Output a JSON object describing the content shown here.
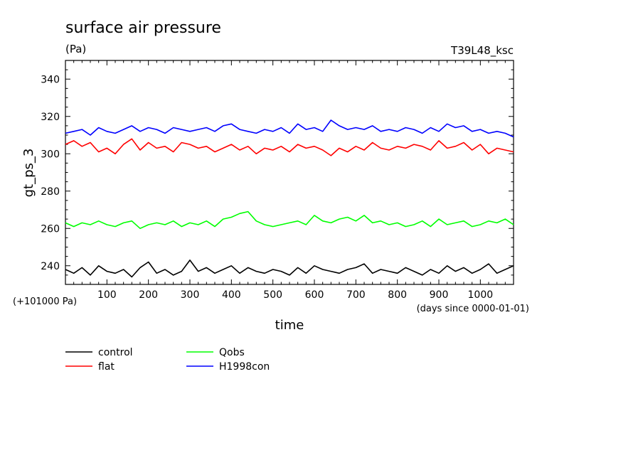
{
  "chart_data": {
    "type": "line",
    "title": "surface air pressure",
    "units": "(Pa)",
    "run_label": "T39L48_ksc",
    "xlabel": "time",
    "x_units": "(days since 0000-01-01)",
    "ylabel": "gt_ps_3",
    "y_offset_note": "(+101000 Pa)",
    "xlim": [
      0,
      1080
    ],
    "ylim": [
      230,
      350
    ],
    "x_ticks": [
      100,
      200,
      300,
      400,
      500,
      600,
      700,
      800,
      900,
      1000
    ],
    "y_ticks": [
      240,
      260,
      280,
      300,
      320,
      340
    ],
    "grid": false,
    "legend_position": "bottom-left",
    "x": [
      0,
      20,
      40,
      60,
      80,
      100,
      120,
      140,
      160,
      180,
      200,
      220,
      240,
      260,
      280,
      300,
      320,
      340,
      360,
      380,
      400,
      420,
      440,
      460,
      480,
      500,
      520,
      540,
      560,
      580,
      600,
      620,
      640,
      660,
      680,
      700,
      720,
      740,
      760,
      780,
      800,
      820,
      840,
      860,
      880,
      900,
      920,
      940,
      960,
      980,
      1000,
      1020,
      1040,
      1060,
      1080
    ],
    "series": [
      {
        "name": "control",
        "color": "#000000",
        "values": [
          238,
          236,
          239,
          235,
          240,
          237,
          236,
          238,
          234,
          239,
          242,
          236,
          238,
          235,
          237,
          243,
          237,
          239,
          236,
          238,
          240,
          236,
          239,
          237,
          236,
          238,
          237,
          235,
          239,
          236,
          240,
          238,
          237,
          236,
          238,
          239,
          241,
          236,
          238,
          237,
          236,
          239,
          237,
          235,
          238,
          236,
          240,
          237,
          239,
          236,
          238,
          241,
          236,
          238,
          240
        ]
      },
      {
        "name": "flat",
        "color": "#ff0000",
        "values": [
          305,
          307,
          304,
          306,
          301,
          303,
          300,
          305,
          308,
          302,
          306,
          303,
          304,
          301,
          306,
          305,
          303,
          304,
          301,
          303,
          305,
          302,
          304,
          300,
          303,
          302,
          304,
          301,
          305,
          303,
          304,
          302,
          299,
          303,
          301,
          304,
          302,
          306,
          303,
          302,
          304,
          303,
          305,
          304,
          302,
          307,
          303,
          304,
          306,
          302,
          305,
          300,
          303,
          302,
          301
        ]
      },
      {
        "name": "Qobs",
        "color": "#00ff00",
        "values": [
          263,
          261,
          263,
          262,
          264,
          262,
          261,
          263,
          264,
          260,
          262,
          263,
          262,
          264,
          261,
          263,
          262,
          264,
          261,
          265,
          266,
          268,
          269,
          264,
          262,
          261,
          262,
          263,
          264,
          262,
          267,
          264,
          263,
          265,
          266,
          264,
          267,
          263,
          264,
          262,
          263,
          261,
          262,
          264,
          261,
          265,
          262,
          263,
          264,
          261,
          262,
          264,
          263,
          265,
          262
        ]
      },
      {
        "name": "H1998con",
        "color": "#0000ff",
        "values": [
          311,
          312,
          313,
          310,
          314,
          312,
          311,
          313,
          315,
          312,
          314,
          313,
          311,
          314,
          313,
          312,
          313,
          314,
          312,
          315,
          316,
          313,
          312,
          311,
          313,
          312,
          314,
          311,
          316,
          313,
          314,
          312,
          318,
          315,
          313,
          314,
          313,
          315,
          312,
          313,
          312,
          314,
          313,
          311,
          314,
          312,
          316,
          314,
          315,
          312,
          313,
          311,
          312,
          311,
          309
        ]
      }
    ]
  }
}
